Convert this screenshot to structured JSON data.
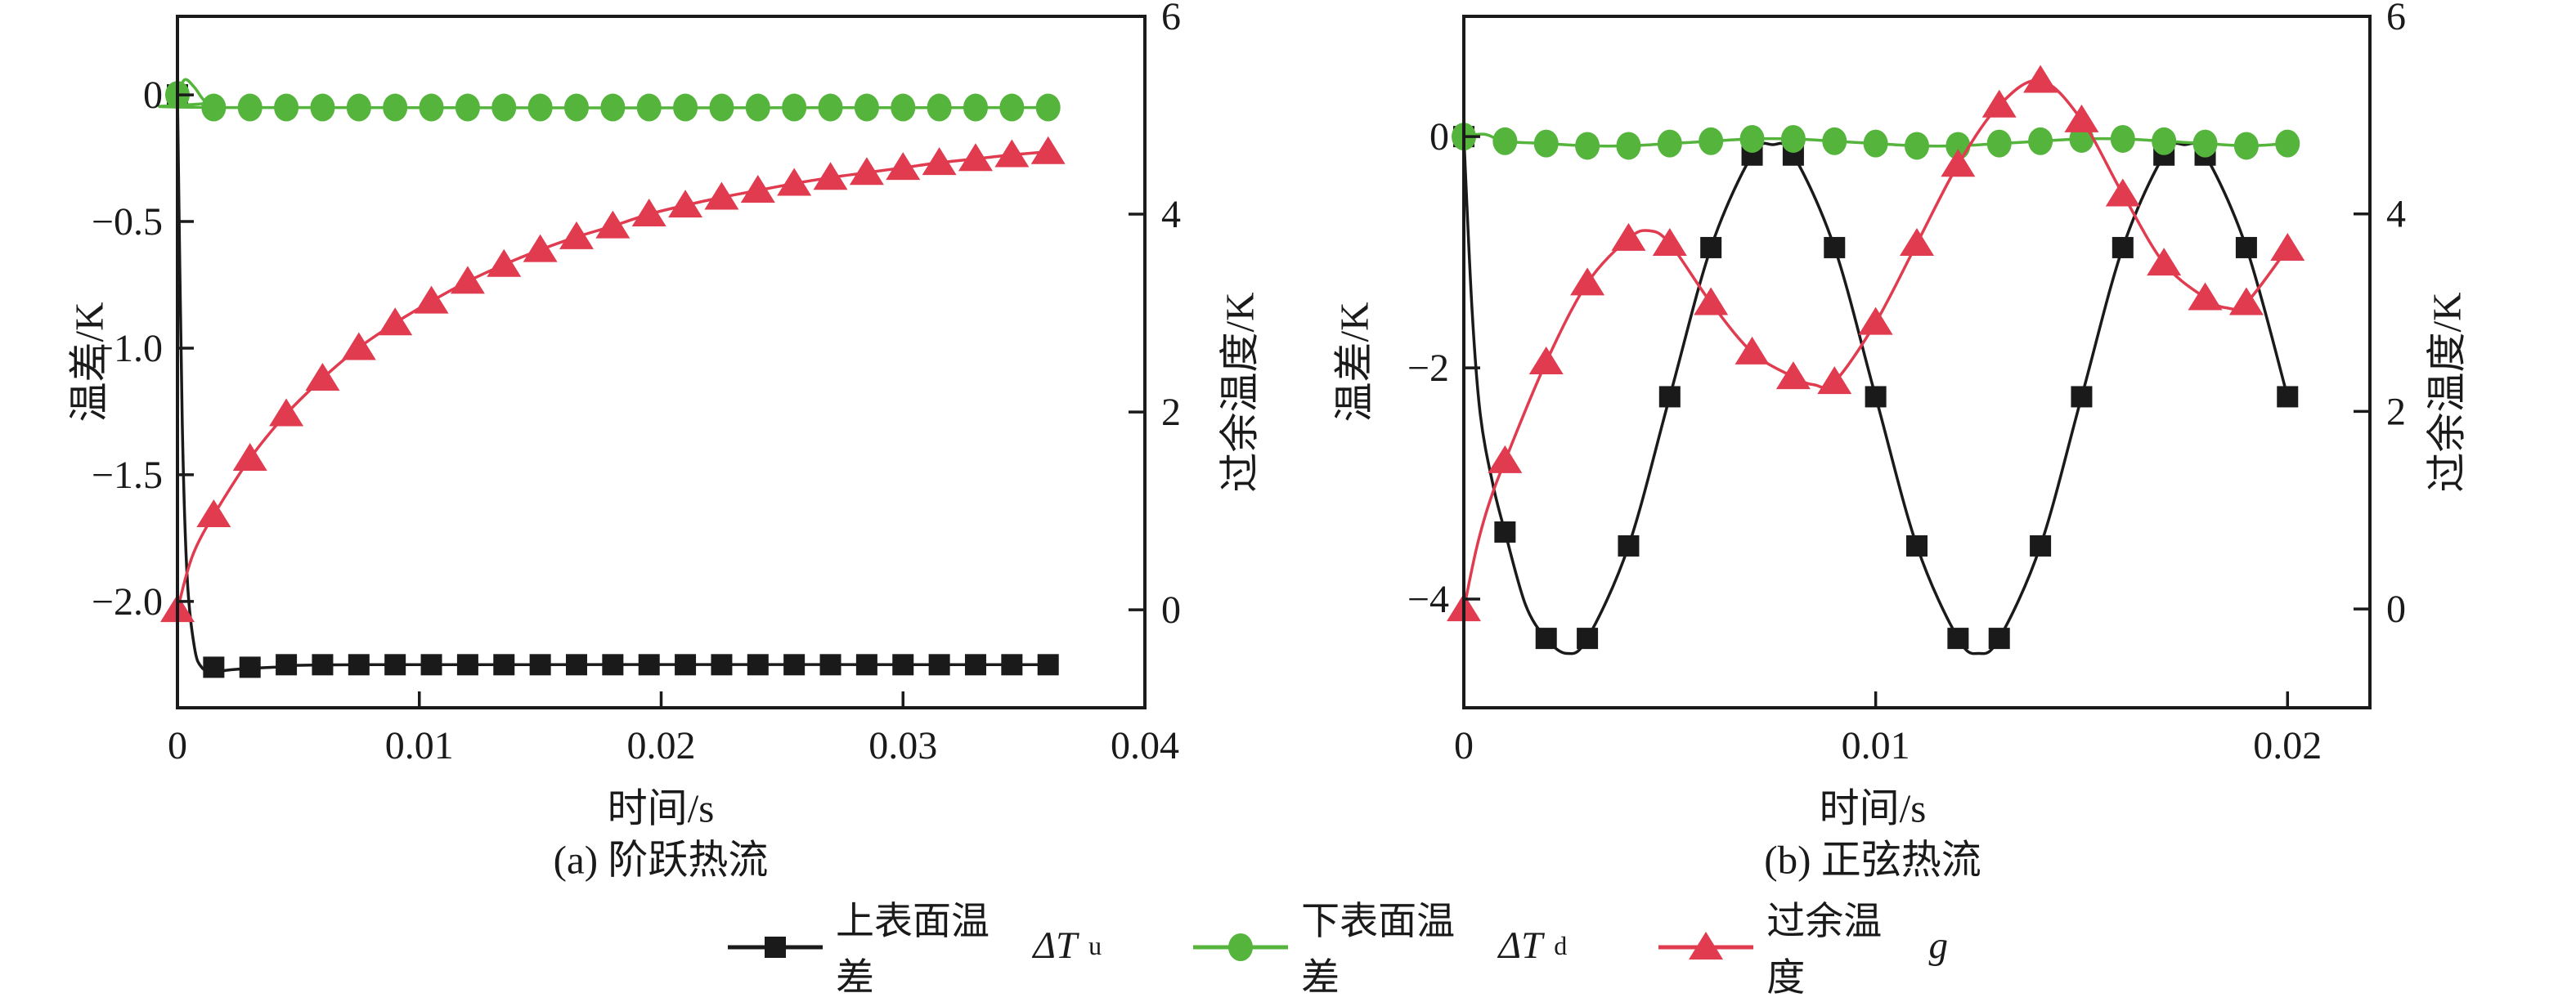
{
  "figure": {
    "background": "#ffffff",
    "frame_color": "#1a1a1a",
    "legend": {
      "items": [
        {
          "marker": "square",
          "color": "#1a1a1a",
          "label": "上表面温差",
          "symbol": "ΔT",
          "subscript": "u"
        },
        {
          "marker": "circle",
          "color": "#54b43c",
          "label": "下表面温差",
          "symbol": "ΔT",
          "subscript": "d"
        },
        {
          "marker": "triangle",
          "color": "#e13b4f",
          "label": "过余温度",
          "symbol": "g",
          "subscript": ""
        }
      ]
    }
  },
  "chart_data": [
    {
      "id": "a",
      "type": "line",
      "title": "(a) 阶跃热流",
      "xlabel": "时间/s",
      "ylabel_left": "温差/K",
      "ylabel_right": "过余温度/K",
      "grid": false,
      "legend_position": "bottom",
      "xlim": [
        0,
        0.04
      ],
      "x_ticks": [
        0,
        0.01,
        0.02,
        0.03,
        0.04
      ],
      "x_tick_labels": [
        "0",
        "0.01",
        "0.02",
        "0.03",
        "0.04"
      ],
      "ylim_left": [
        -2.42,
        0.31
      ],
      "y_ticks_left": [
        0,
        -0.5,
        -1.0,
        -1.5,
        -2.0
      ],
      "y_tick_labels_left": [
        "0",
        "−0.5",
        "−1.0",
        "−1.5",
        "−2.0"
      ],
      "ylim_right": [
        -0.99,
        6
      ],
      "y_ticks_right": [
        6,
        4,
        2,
        0
      ],
      "y_tick_labels_right": [
        "6",
        "4",
        "2",
        "0"
      ],
      "series": [
        {
          "name": "上表面温差 ΔTu",
          "axis": "left",
          "color": "#1a1a1a",
          "marker": "square",
          "x": [
            0,
            0.0015,
            0.003,
            0.0045,
            0.006,
            0.0075,
            0.009,
            0.0105,
            0.012,
            0.0135,
            0.015,
            0.0165,
            0.018,
            0.0195,
            0.021,
            0.0225,
            0.024,
            0.0255,
            0.027,
            0.0285,
            0.03,
            0.0315,
            0.033,
            0.0345,
            0.036
          ],
          "y": [
            0,
            -2.26,
            -2.26,
            -2.25,
            -2.25,
            -2.25,
            -2.25,
            -2.25,
            -2.25,
            -2.25,
            -2.25,
            -2.25,
            -2.25,
            -2.25,
            -2.25,
            -2.25,
            -2.25,
            -2.25,
            -2.25,
            -2.25,
            -2.25,
            -2.25,
            -2.25,
            -2.25,
            -2.25
          ],
          "curve": [
            [
              0,
              0
            ],
            [
              0.0002,
              -1.3
            ],
            [
              0.0004,
              -1.9
            ],
            [
              0.0007,
              -2.18
            ],
            [
              0.001,
              -2.26
            ],
            [
              0.0015,
              -2.28
            ],
            [
              0.0022,
              -2.27
            ],
            [
              0.004,
              -2.26
            ],
            [
              0.008,
              -2.25
            ],
            [
              0.036,
              -2.25
            ]
          ]
        },
        {
          "name": "下表面温差 ΔTd",
          "axis": "left",
          "color": "#54b43c",
          "marker": "circle",
          "x": [
            0,
            0.0015,
            0.003,
            0.0045,
            0.006,
            0.0075,
            0.009,
            0.0105,
            0.012,
            0.0135,
            0.015,
            0.0165,
            0.018,
            0.0195,
            0.021,
            0.0225,
            0.024,
            0.0255,
            0.027,
            0.0285,
            0.03,
            0.0315,
            0.033,
            0.0345,
            0.036
          ],
          "y": [
            0,
            -0.05,
            -0.05,
            -0.05,
            -0.05,
            -0.05,
            -0.05,
            -0.05,
            -0.05,
            -0.05,
            -0.05,
            -0.05,
            -0.05,
            -0.05,
            -0.05,
            -0.05,
            -0.05,
            -0.05,
            -0.05,
            -0.05,
            -0.05,
            -0.05,
            -0.05,
            -0.05,
            -0.05
          ],
          "curve": [
            [
              0,
              0
            ],
            [
              0.0003,
              0.06
            ],
            [
              0.0007,
              0.03
            ],
            [
              0.0012,
              -0.03
            ],
            [
              0.002,
              -0.05
            ],
            [
              0.036,
              -0.05
            ]
          ]
        },
        {
          "name": "过余温度 g",
          "axis": "right",
          "color": "#e13b4f",
          "marker": "triangle",
          "x": [
            0,
            0.0015,
            0.003,
            0.0045,
            0.006,
            0.0075,
            0.009,
            0.0105,
            0.012,
            0.0135,
            0.015,
            0.0165,
            0.018,
            0.0195,
            0.021,
            0.0225,
            0.024,
            0.0255,
            0.027,
            0.0285,
            0.03,
            0.0315,
            0.033,
            0.0345,
            0.036
          ],
          "y": [
            0,
            0.96,
            1.53,
            1.98,
            2.34,
            2.65,
            2.9,
            3.12,
            3.32,
            3.49,
            3.64,
            3.77,
            3.88,
            4.0,
            4.09,
            4.17,
            4.24,
            4.31,
            4.37,
            4.42,
            4.47,
            4.52,
            4.56,
            4.6,
            4.63
          ],
          "curve": [
            [
              0,
              0
            ],
            [
              0.0004,
              0.38
            ],
            [
              0.0008,
              0.65
            ],
            [
              0.0015,
              0.96
            ],
            [
              0.003,
              1.53
            ],
            [
              0.0045,
              1.98
            ],
            [
              0.006,
              2.34
            ],
            [
              0.0075,
              2.65
            ],
            [
              0.009,
              2.9
            ],
            [
              0.0105,
              3.12
            ],
            [
              0.012,
              3.32
            ],
            [
              0.0135,
              3.49
            ],
            [
              0.015,
              3.64
            ],
            [
              0.0165,
              3.77
            ],
            [
              0.018,
              3.88
            ],
            [
              0.0195,
              4.0
            ],
            [
              0.021,
              4.09
            ],
            [
              0.0225,
              4.17
            ],
            [
              0.024,
              4.24
            ],
            [
              0.0255,
              4.31
            ],
            [
              0.027,
              4.37
            ],
            [
              0.0285,
              4.42
            ],
            [
              0.03,
              4.47
            ],
            [
              0.0315,
              4.52
            ],
            [
              0.033,
              4.56
            ],
            [
              0.0345,
              4.6
            ],
            [
              0.036,
              4.63
            ]
          ]
        }
      ]
    },
    {
      "id": "b",
      "type": "line",
      "title": "(b) 正弦热流",
      "xlabel": "时间/s",
      "ylabel_left": "温差/K",
      "ylabel_right": "过余温度/K",
      "grid": false,
      "legend_position": "bottom",
      "xlim": [
        0,
        0.022
      ],
      "x_ticks": [
        0,
        0.01,
        0.02
      ],
      "x_tick_labels": [
        "0",
        "0.01",
        "0.02"
      ],
      "ylim_left": [
        -4.94,
        1.04
      ],
      "y_ticks_left": [
        0,
        -2,
        -4
      ],
      "y_tick_labels_left": [
        "0",
        "−2",
        "−4"
      ],
      "ylim_right": [
        -1.0,
        6
      ],
      "y_ticks_right": [
        6,
        4,
        2,
        0
      ],
      "y_tick_labels_right": [
        "6",
        "4",
        "2",
        "0"
      ],
      "series": [
        {
          "name": "上表面温差 ΔTu",
          "axis": "left",
          "color": "#1a1a1a",
          "marker": "square",
          "x": [
            0,
            0.001,
            0.002,
            0.003,
            0.004,
            0.005,
            0.006,
            0.007,
            0.008,
            0.009,
            0.01,
            0.011,
            0.012,
            0.013,
            0.014,
            0.015,
            0.016,
            0.017,
            0.018,
            0.019,
            0.02
          ],
          "y": [
            0,
            -3.42,
            -4.34,
            -4.34,
            -3.54,
            -2.25,
            -0.96,
            -0.16,
            -0.16,
            -0.96,
            -2.25,
            -3.54,
            -4.34,
            -4.34,
            -3.54,
            -2.25,
            -0.96,
            -0.16,
            -0.16,
            -0.96,
            -2.25
          ],
          "curve": [
            [
              0,
              0
            ],
            [
              0.0002,
              -1.5
            ],
            [
              0.0004,
              -2.4
            ],
            [
              0.0007,
              -3.0
            ],
            [
              0.001,
              -3.42
            ],
            [
              0.0015,
              -4.05
            ],
            [
              0.002,
              -4.34
            ],
            [
              0.0025,
              -4.47
            ],
            [
              0.003,
              -4.34
            ],
            [
              0.004,
              -3.54
            ],
            [
              0.005,
              -2.25
            ],
            [
              0.006,
              -0.96
            ],
            [
              0.007,
              -0.16
            ],
            [
              0.0075,
              -0.07
            ],
            [
              0.008,
              -0.16
            ],
            [
              0.009,
              -0.96
            ],
            [
              0.01,
              -2.25
            ],
            [
              0.011,
              -3.54
            ],
            [
              0.012,
              -4.34
            ],
            [
              0.0125,
              -4.47
            ],
            [
              0.013,
              -4.34
            ],
            [
              0.014,
              -3.54
            ],
            [
              0.015,
              -2.25
            ],
            [
              0.016,
              -0.96
            ],
            [
              0.017,
              -0.16
            ],
            [
              0.0175,
              -0.07
            ],
            [
              0.018,
              -0.16
            ],
            [
              0.019,
              -0.96
            ],
            [
              0.02,
              -2.25
            ]
          ]
        },
        {
          "name": "下表面温差 ΔTd",
          "axis": "left",
          "color": "#54b43c",
          "marker": "circle",
          "x": [
            0,
            0.001,
            0.002,
            0.003,
            0.004,
            0.005,
            0.006,
            0.007,
            0.008,
            0.009,
            0.01,
            0.011,
            0.012,
            0.013,
            0.014,
            0.015,
            0.016,
            0.017,
            0.018,
            0.019,
            0.02
          ],
          "y": [
            0,
            -0.04,
            -0.06,
            -0.08,
            -0.08,
            -0.06,
            -0.04,
            -0.02,
            -0.02,
            -0.04,
            -0.06,
            -0.08,
            -0.08,
            -0.06,
            -0.04,
            -0.02,
            -0.02,
            -0.04,
            -0.06,
            -0.08,
            -0.06
          ],
          "curve": [
            [
              0,
              0
            ],
            [
              0.0005,
              0.02
            ],
            [
              0.001,
              -0.04
            ],
            [
              0.002,
              -0.06
            ],
            [
              0.003,
              -0.08
            ],
            [
              0.004,
              -0.08
            ],
            [
              0.005,
              -0.06
            ],
            [
              0.006,
              -0.04
            ],
            [
              0.007,
              -0.02
            ],
            [
              0.008,
              -0.02
            ],
            [
              0.009,
              -0.04
            ],
            [
              0.01,
              -0.06
            ],
            [
              0.011,
              -0.08
            ],
            [
              0.012,
              -0.08
            ],
            [
              0.013,
              -0.06
            ],
            [
              0.014,
              -0.04
            ],
            [
              0.015,
              -0.02
            ],
            [
              0.016,
              -0.02
            ],
            [
              0.017,
              -0.04
            ],
            [
              0.018,
              -0.06
            ],
            [
              0.019,
              -0.08
            ],
            [
              0.02,
              -0.06
            ]
          ]
        },
        {
          "name": "过余温度 g",
          "axis": "right",
          "color": "#e13b4f",
          "marker": "triangle",
          "x": [
            0,
            0.001,
            0.002,
            0.003,
            0.004,
            0.005,
            0.006,
            0.007,
            0.008,
            0.009,
            0.01,
            0.011,
            0.012,
            0.013,
            0.014,
            0.015,
            0.016,
            0.017,
            0.018,
            0.019,
            0.02
          ],
          "y": [
            0,
            1.5,
            2.5,
            3.3,
            3.75,
            3.7,
            3.1,
            2.6,
            2.35,
            2.3,
            2.9,
            3.7,
            4.5,
            5.1,
            5.35,
            4.95,
            4.2,
            3.5,
            3.15,
            3.1,
            3.65
          ],
          "curve": [
            [
              0,
              0
            ],
            [
              0.0003,
              0.6
            ],
            [
              0.0006,
              1.05
            ],
            [
              0.001,
              1.5
            ],
            [
              0.002,
              2.5
            ],
            [
              0.003,
              3.3
            ],
            [
              0.004,
              3.75
            ],
            [
              0.0045,
              3.83
            ],
            [
              0.005,
              3.7
            ],
            [
              0.006,
              3.1
            ],
            [
              0.007,
              2.6
            ],
            [
              0.008,
              2.35
            ],
            [
              0.0085,
              2.27
            ],
            [
              0.009,
              2.3
            ],
            [
              0.01,
              2.9
            ],
            [
              0.011,
              3.7
            ],
            [
              0.012,
              4.5
            ],
            [
              0.013,
              5.1
            ],
            [
              0.014,
              5.35
            ],
            [
              0.015,
              4.95
            ],
            [
              0.016,
              4.2
            ],
            [
              0.017,
              3.5
            ],
            [
              0.018,
              3.15
            ],
            [
              0.0185,
              3.05
            ],
            [
              0.019,
              3.1
            ],
            [
              0.02,
              3.65
            ]
          ]
        }
      ]
    }
  ],
  "layout_note": ""
}
